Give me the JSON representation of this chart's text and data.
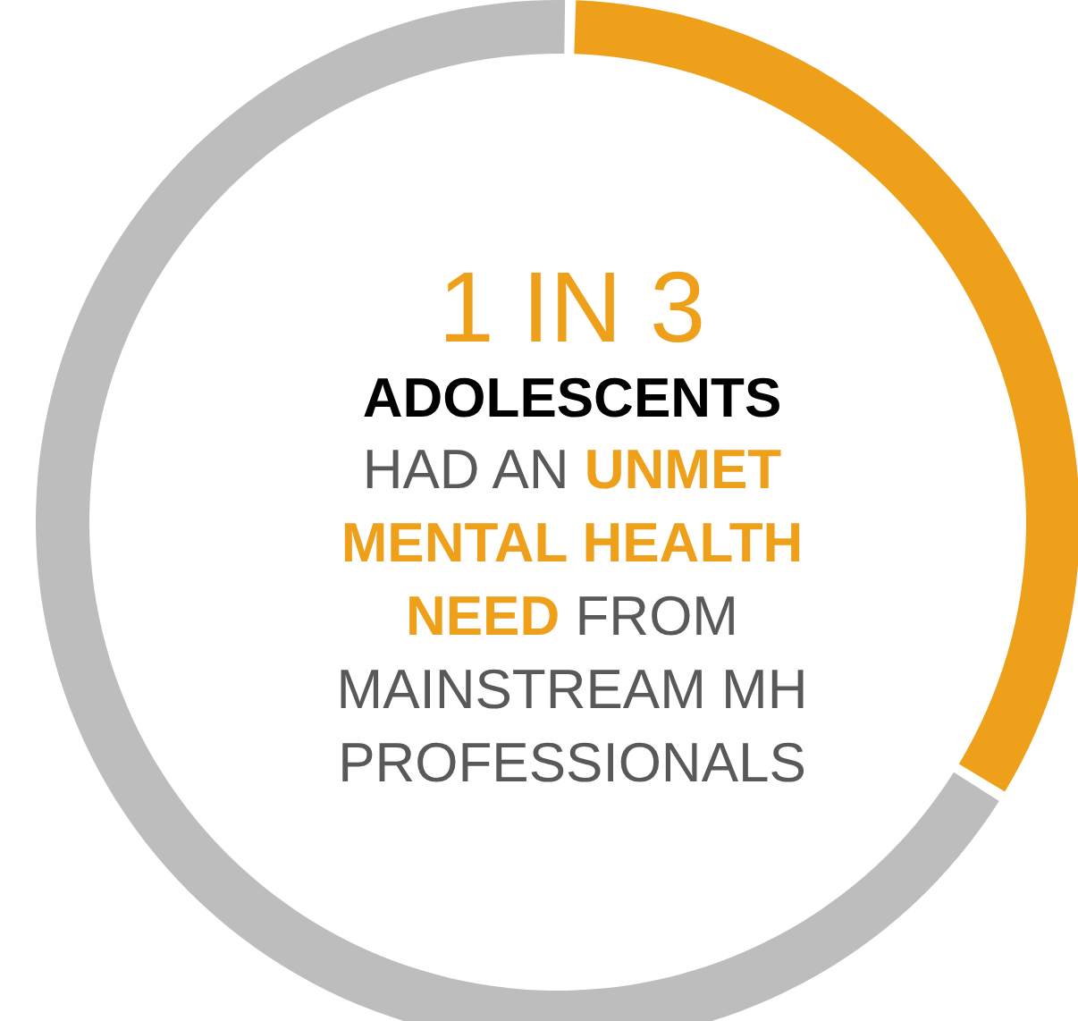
{
  "chart_data": {
    "type": "donut",
    "title": "1 IN 3",
    "subtitle": "ADOLESCENTS",
    "annotations": [
      "HAD AN",
      "UNMET MENTAL HEALTH NEED",
      "FROM MAINSTREAM MH PROFESSIONALS"
    ],
    "categories": [
      null,
      null
    ],
    "values": [
      33.3,
      66.7
    ],
    "colors": [
      "#eea01b",
      "#bdbdbd"
    ]
  }
}
